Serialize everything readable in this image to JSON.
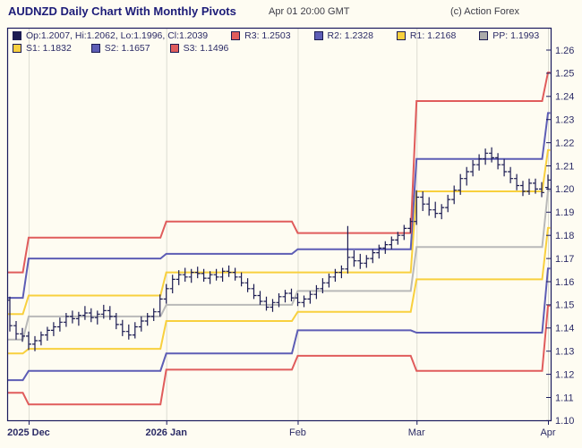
{
  "header": {
    "title": "AUDNZD Daily Chart With Monthly Pivots",
    "datetime": "Apr 01 20:00 GMT",
    "copyright": "(c) Action Forex"
  },
  "legend": {
    "rows": [
      [
        {
          "label": "Op:1.2007, Hi:1.2062, Lo:1.1996, Cl:1.2039",
          "color": "#1c1c52"
        },
        {
          "label": "R3: 1.2503",
          "color": "#e05c5c"
        },
        {
          "label": "R2: 1.2328",
          "color": "#5d5db5"
        },
        {
          "label": "R1: 1.2168",
          "color": "#f8d03e"
        },
        {
          "label": "PP: 1.1993",
          "color": "#aaaaaa"
        }
      ],
      [
        {
          "label": "S1: 1.1832",
          "color": "#f8d03e"
        },
        {
          "label": "S2: 1.1657",
          "color": "#5d5db5"
        },
        {
          "label": "S3: 1.1496",
          "color": "#e05c5c"
        }
      ]
    ]
  },
  "chart_data": {
    "type": "ohlc-bar",
    "title": "AUDNZD Daily Chart With Monthly Pivots",
    "symbol": "AUDNZD",
    "timeframe": "Daily",
    "overlay": "Monthly Pivots",
    "bar_color": "#1c1c52",
    "grid_color": "#dcdcd2",
    "border_color": "#1b1b5e",
    "text_color": "#2b2b66",
    "y_axis": {
      "min": 1.1,
      "max": 1.26,
      "tick_step": 0.01,
      "side": "right",
      "ticks": [
        "1.26",
        "1.25",
        "1.24",
        "1.23",
        "1.22",
        "1.21",
        "1.20",
        "1.19",
        "1.18",
        "1.17",
        "1.16",
        "1.15",
        "1.14",
        "1.13",
        "1.12",
        "1.11",
        "1.10"
      ]
    },
    "x_ticks": [
      {
        "label": "2025 Dec",
        "bar_index": 3,
        "bold": true
      },
      {
        "label": "2026 Jan",
        "bar_index": 25,
        "bold": true
      },
      {
        "label": "Feb",
        "bar_index": 46,
        "bold": false
      },
      {
        "label": "Mar",
        "bar_index": 65,
        "bold": false
      },
      {
        "label": "Apr",
        "bar_index": 86,
        "bold": false
      }
    ],
    "pivot_line_colors": {
      "R3": "#e05c5c",
      "R2": "#5d5db5",
      "R1": "#f8d03e",
      "PP": "#b9b9b9",
      "S1": "#f8d03e",
      "S2": "#5d5db5",
      "S3": "#e05c5c"
    },
    "pivot_months": [
      {
        "month": "2025 Nov",
        "start_bar": 0,
        "levels": {
          "R3": 1.164,
          "R2": 1.153,
          "R1": 1.146,
          "PP": 1.135,
          "S1": 1.129,
          "S2": 1.1175,
          "S3": 1.112
        }
      },
      {
        "month": "2025 Dec",
        "start_bar": 3,
        "levels": {
          "R3": 1.179,
          "R2": 1.17,
          "R1": 1.154,
          "PP": 1.145,
          "S1": 1.131,
          "S2": 1.1215,
          "S3": 1.107
        }
      },
      {
        "month": "2026 Jan",
        "start_bar": 25,
        "levels": {
          "R3": 1.186,
          "R2": 1.172,
          "R1": 1.164,
          "PP": 1.15,
          "S1": 1.143,
          "S2": 1.129,
          "S3": 1.122
        }
      },
      {
        "month": "2026 Feb",
        "start_bar": 46,
        "levels": {
          "R3": 1.181,
          "R2": 1.174,
          "R1": 1.164,
          "PP": 1.156,
          "S1": 1.147,
          "S2": 1.139,
          "S3": 1.128
        }
      },
      {
        "month": "2026 Mar",
        "start_bar": 65,
        "levels": {
          "R3": 1.238,
          "R2": 1.213,
          "R1": 1.199,
          "PP": 1.175,
          "S1": 1.161,
          "S2": 1.138,
          "S3": 1.1215
        }
      },
      {
        "month": "2026 Apr",
        "start_bar": 86,
        "levels": {
          "R3": 1.2503,
          "R2": 1.2328,
          "R1": 1.2168,
          "PP": 1.1993,
          "S1": 1.1832,
          "S2": 1.1657,
          "S3": 1.1496
        }
      }
    ],
    "bars": [
      [
        1.152,
        1.1535,
        1.1385,
        1.141
      ],
      [
        1.141,
        1.143,
        1.135,
        1.1375
      ],
      [
        1.1375,
        1.14,
        1.134,
        1.1365
      ],
      [
        1.1365,
        1.1385,
        1.1305,
        1.133
      ],
      [
        1.133,
        1.1365,
        1.13,
        1.1345
      ],
      [
        1.1345,
        1.1385,
        1.1325,
        1.137
      ],
      [
        1.137,
        1.1405,
        1.1345,
        1.139
      ],
      [
        1.139,
        1.1425,
        1.1365,
        1.1405
      ],
      [
        1.1405,
        1.1445,
        1.1385,
        1.1425
      ],
      [
        1.1425,
        1.1465,
        1.1405,
        1.145
      ],
      [
        1.145,
        1.1475,
        1.142,
        1.144
      ],
      [
        1.144,
        1.147,
        1.141,
        1.1455
      ],
      [
        1.1455,
        1.1495,
        1.1435,
        1.1465
      ],
      [
        1.1465,
        1.1485,
        1.1425,
        1.1445
      ],
      [
        1.1445,
        1.1475,
        1.1415,
        1.146
      ],
      [
        1.146,
        1.15,
        1.144,
        1.1475
      ],
      [
        1.1475,
        1.1495,
        1.1435,
        1.145
      ],
      [
        1.145,
        1.1465,
        1.1395,
        1.1415
      ],
      [
        1.1415,
        1.1435,
        1.1365,
        1.1385
      ],
      [
        1.1385,
        1.1415,
        1.135,
        1.137
      ],
      [
        1.137,
        1.1425,
        1.1355,
        1.1405
      ],
      [
        1.1405,
        1.145,
        1.1385,
        1.143
      ],
      [
        1.143,
        1.1465,
        1.141,
        1.145
      ],
      [
        1.145,
        1.1485,
        1.143,
        1.147
      ],
      [
        1.147,
        1.1545,
        1.145,
        1.1525
      ],
      [
        1.1525,
        1.159,
        1.1505,
        1.157
      ],
      [
        1.157,
        1.163,
        1.155,
        1.161
      ],
      [
        1.161,
        1.165,
        1.1585,
        1.163
      ],
      [
        1.163,
        1.166,
        1.16,
        1.162
      ],
      [
        1.162,
        1.1655,
        1.1595,
        1.164
      ],
      [
        1.164,
        1.1665,
        1.1615,
        1.1635
      ],
      [
        1.1635,
        1.1655,
        1.16,
        1.1615
      ],
      [
        1.1615,
        1.1645,
        1.159,
        1.163
      ],
      [
        1.163,
        1.1655,
        1.1605,
        1.162
      ],
      [
        1.162,
        1.166,
        1.16,
        1.1645
      ],
      [
        1.1645,
        1.167,
        1.162,
        1.164
      ],
      [
        1.164,
        1.166,
        1.1605,
        1.162
      ],
      [
        1.162,
        1.164,
        1.158,
        1.1595
      ],
      [
        1.1595,
        1.1615,
        1.1555,
        1.157
      ],
      [
        1.157,
        1.159,
        1.1525,
        1.154
      ],
      [
        1.154,
        1.156,
        1.15,
        1.1515
      ],
      [
        1.1515,
        1.1535,
        1.1475,
        1.149
      ],
      [
        1.149,
        1.1525,
        1.147,
        1.151
      ],
      [
        1.151,
        1.155,
        1.149,
        1.1535
      ],
      [
        1.1535,
        1.1565,
        1.151,
        1.155
      ],
      [
        1.155,
        1.157,
        1.1515,
        1.153
      ],
      [
        1.153,
        1.155,
        1.1495,
        1.151
      ],
      [
        1.151,
        1.154,
        1.149,
        1.1525
      ],
      [
        1.1525,
        1.156,
        1.1505,
        1.1545
      ],
      [
        1.1545,
        1.1585,
        1.1525,
        1.157
      ],
      [
        1.157,
        1.1615,
        1.155,
        1.1595
      ],
      [
        1.1595,
        1.1635,
        1.1575,
        1.162
      ],
      [
        1.162,
        1.1655,
        1.16,
        1.164
      ],
      [
        1.164,
        1.167,
        1.1615,
        1.1655
      ],
      [
        1.1655,
        1.184,
        1.1635,
        1.1705
      ],
      [
        1.1705,
        1.1735,
        1.1665,
        1.169
      ],
      [
        1.169,
        1.172,
        1.1655,
        1.168
      ],
      [
        1.168,
        1.1715,
        1.166,
        1.17
      ],
      [
        1.17,
        1.174,
        1.168,
        1.1725
      ],
      [
        1.1725,
        1.176,
        1.17,
        1.1745
      ],
      [
        1.1745,
        1.1775,
        1.172,
        1.176
      ],
      [
        1.176,
        1.1795,
        1.174,
        1.178
      ],
      [
        1.178,
        1.1815,
        1.176,
        1.18
      ],
      [
        1.18,
        1.1845,
        1.178,
        1.183
      ],
      [
        1.183,
        1.1875,
        1.181,
        1.186
      ],
      [
        1.186,
        1.1995,
        1.1845,
        1.1965
      ],
      [
        1.1965,
        1.199,
        1.1905,
        1.1935
      ],
      [
        1.1935,
        1.1965,
        1.1885,
        1.191
      ],
      [
        1.191,
        1.1945,
        1.1875,
        1.1895
      ],
      [
        1.1895,
        1.1935,
        1.187,
        1.192
      ],
      [
        1.192,
        1.1975,
        1.19,
        1.1955
      ],
      [
        1.1955,
        1.2015,
        1.1935,
        1.1995
      ],
      [
        1.1995,
        1.2065,
        1.1975,
        1.2045
      ],
      [
        1.2045,
        1.2095,
        1.2015,
        1.2075
      ],
      [
        1.2075,
        1.2125,
        1.2055,
        1.2105
      ],
      [
        1.2105,
        1.215,
        1.208,
        1.213
      ],
      [
        1.213,
        1.2175,
        1.2105,
        1.2155
      ],
      [
        1.2155,
        1.218,
        1.2115,
        1.2135
      ],
      [
        1.2135,
        1.2155,
        1.2085,
        1.2105
      ],
      [
        1.2105,
        1.213,
        1.2055,
        1.2075
      ],
      [
        1.2075,
        1.2095,
        1.2025,
        1.2045
      ],
      [
        1.2045,
        1.2065,
        1.1995,
        1.2015
      ],
      [
        1.2015,
        1.2035,
        1.197,
        1.199
      ],
      [
        1.199,
        1.2045,
        1.1975,
        1.2025
      ],
      [
        1.2025,
        1.2045,
        1.198,
        1.2
      ],
      [
        1.2,
        1.203,
        1.1965,
        1.1985
      ],
      [
        1.2007,
        1.2062,
        1.1996,
        1.2039
      ]
    ]
  }
}
